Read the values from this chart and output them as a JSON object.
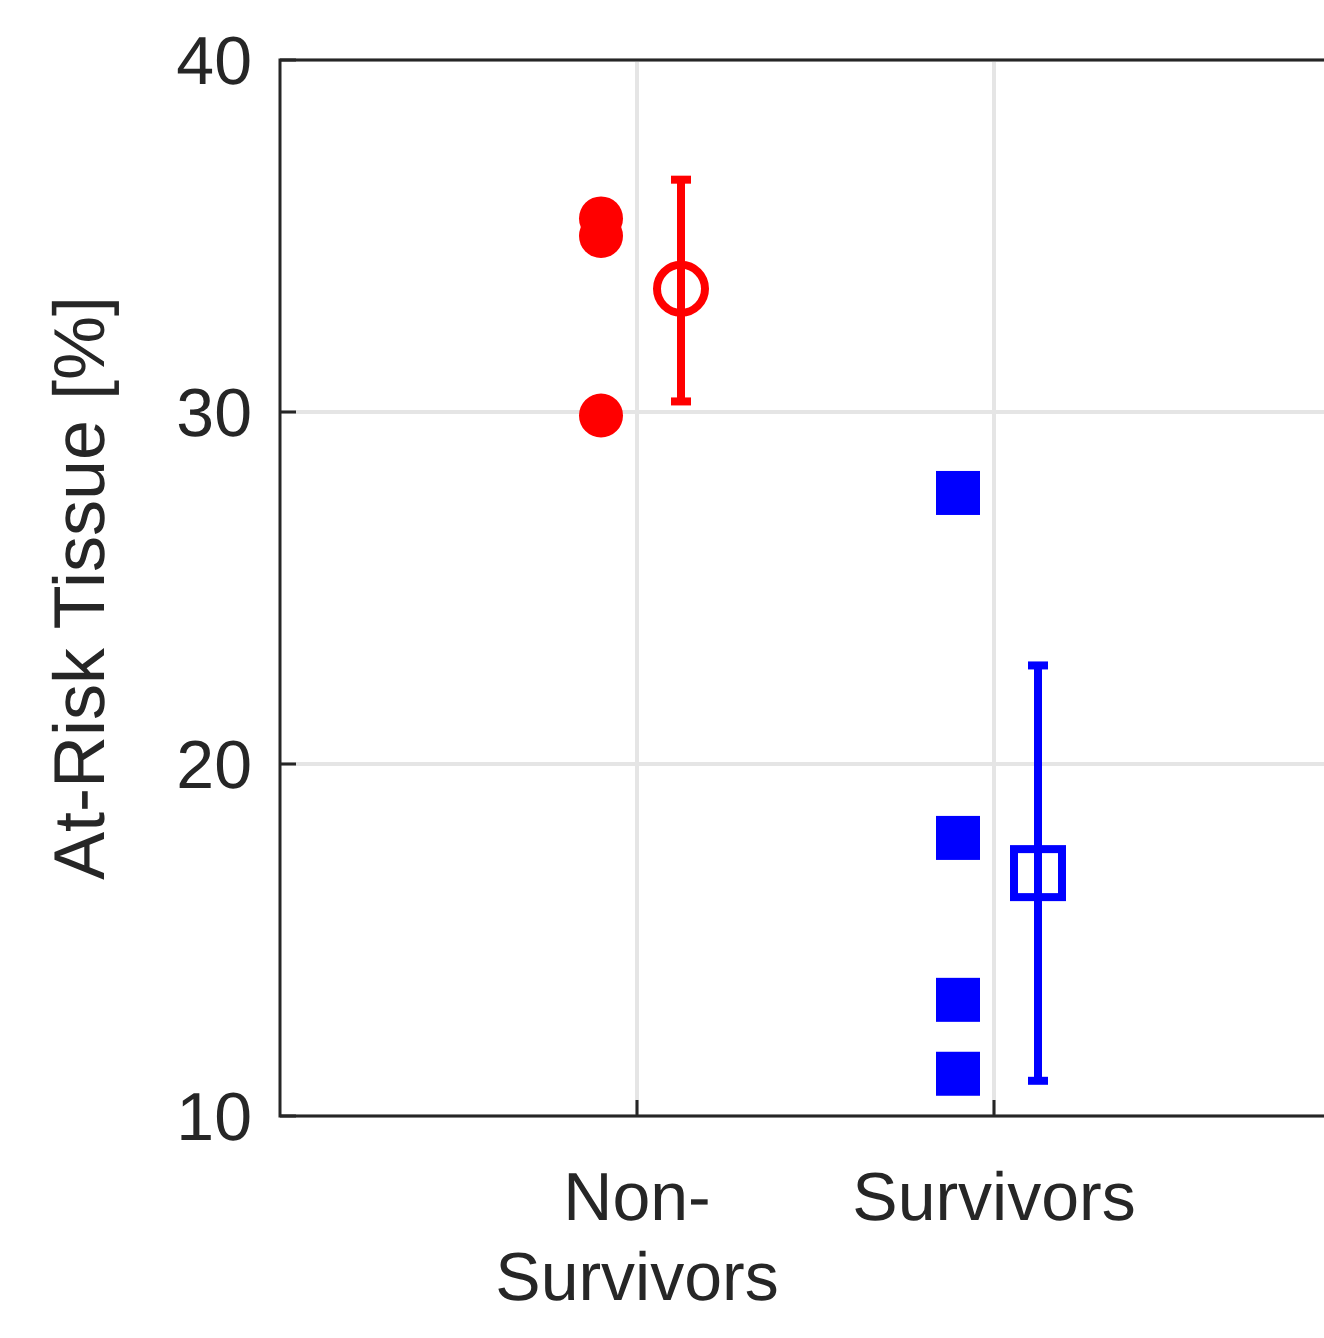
{
  "chart_data": {
    "type": "scatter",
    "ylabel": "At-Risk Tissue [%]",
    "categories": [
      "Non-Survivors",
      "Survivors"
    ],
    "ylim": [
      10,
      40
    ],
    "yticks": [
      10,
      20,
      30,
      40
    ],
    "grid": true,
    "series": [
      {
        "color": "#ff0000",
        "marker": "circle",
        "x": [
          "Non-Survivors",
          "Non-Survivors",
          "Non-Survivors"
        ],
        "values": [
          35.5,
          35.0,
          29.9
        ]
      },
      {
        "color": "#0000ff",
        "marker": "square",
        "x": [
          "Survivors",
          "Survivors",
          "Survivors",
          "Survivors"
        ],
        "values": [
          27.7,
          17.9,
          13.3,
          11.2
        ]
      },
      {
        "color": "#ff0000",
        "marker": "circle",
        "x": [
          "Non-Survivors"
        ],
        "values": [
          33.5
        ],
        "errors": [
          [
            30.3,
            36.6
          ]
        ]
      },
      {
        "color": "#0000ff",
        "marker": "square",
        "x": [
          "Survivors"
        ],
        "values": [
          16.9
        ],
        "errors": [
          [
            11.0,
            22.8
          ]
        ]
      }
    ]
  }
}
